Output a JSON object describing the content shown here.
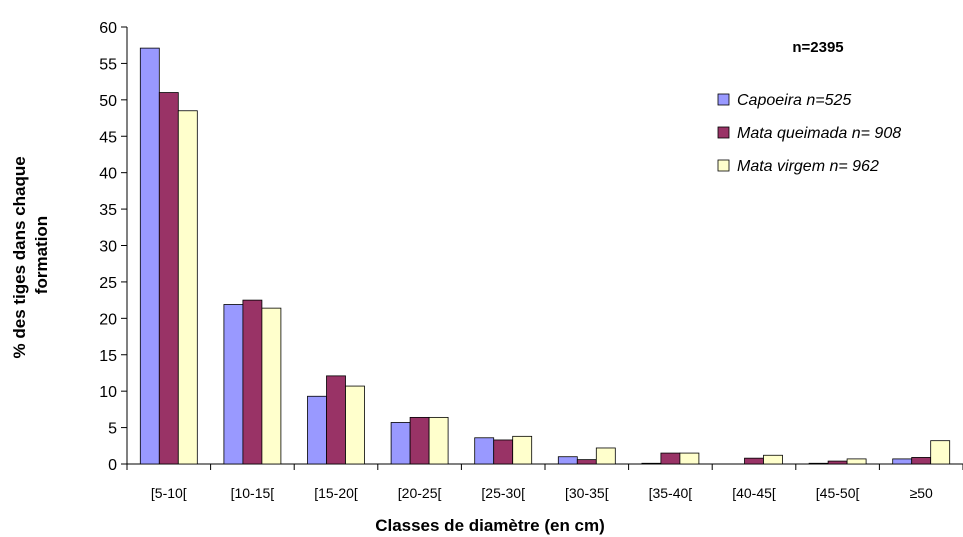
{
  "chart_data": {
    "type": "bar",
    "categories": [
      "[5-10[",
      "[10-15[",
      "[15-20[",
      "[20-25[",
      "[25-30[",
      "[30-35[",
      "[35-40[",
      "[40-45[",
      "[45-50[",
      "≥50"
    ],
    "series": [
      {
        "name": "Capoeira n=525",
        "color": "#9999ff",
        "values": [
          57.1,
          21.9,
          9.3,
          5.7,
          3.6,
          1.0,
          0.1,
          0.0,
          0.1,
          0.7
        ]
      },
      {
        "name": "Mata queimada n= 908",
        "color": "#993366",
        "values": [
          51.0,
          22.5,
          12.1,
          6.4,
          3.3,
          0.6,
          1.5,
          0.8,
          0.4,
          0.9
        ]
      },
      {
        "name": "Mata virgem n= 962",
        "color": "#ffffcc",
        "values": [
          48.5,
          21.4,
          10.7,
          6.4,
          3.8,
          2.2,
          1.5,
          1.2,
          0.7,
          3.2
        ]
      }
    ],
    "title": "",
    "annotation": "n=2395",
    "xlabel": "Classes de diamètre (en cm)",
    "ylabel": [
      "% des tiges dans chaque",
      "formation"
    ],
    "ylim": [
      0,
      60
    ],
    "yticks": [
      0,
      5,
      10,
      15,
      20,
      25,
      30,
      35,
      40,
      45,
      50,
      55,
      60
    ],
    "grid": false,
    "legend_position": "right"
  }
}
